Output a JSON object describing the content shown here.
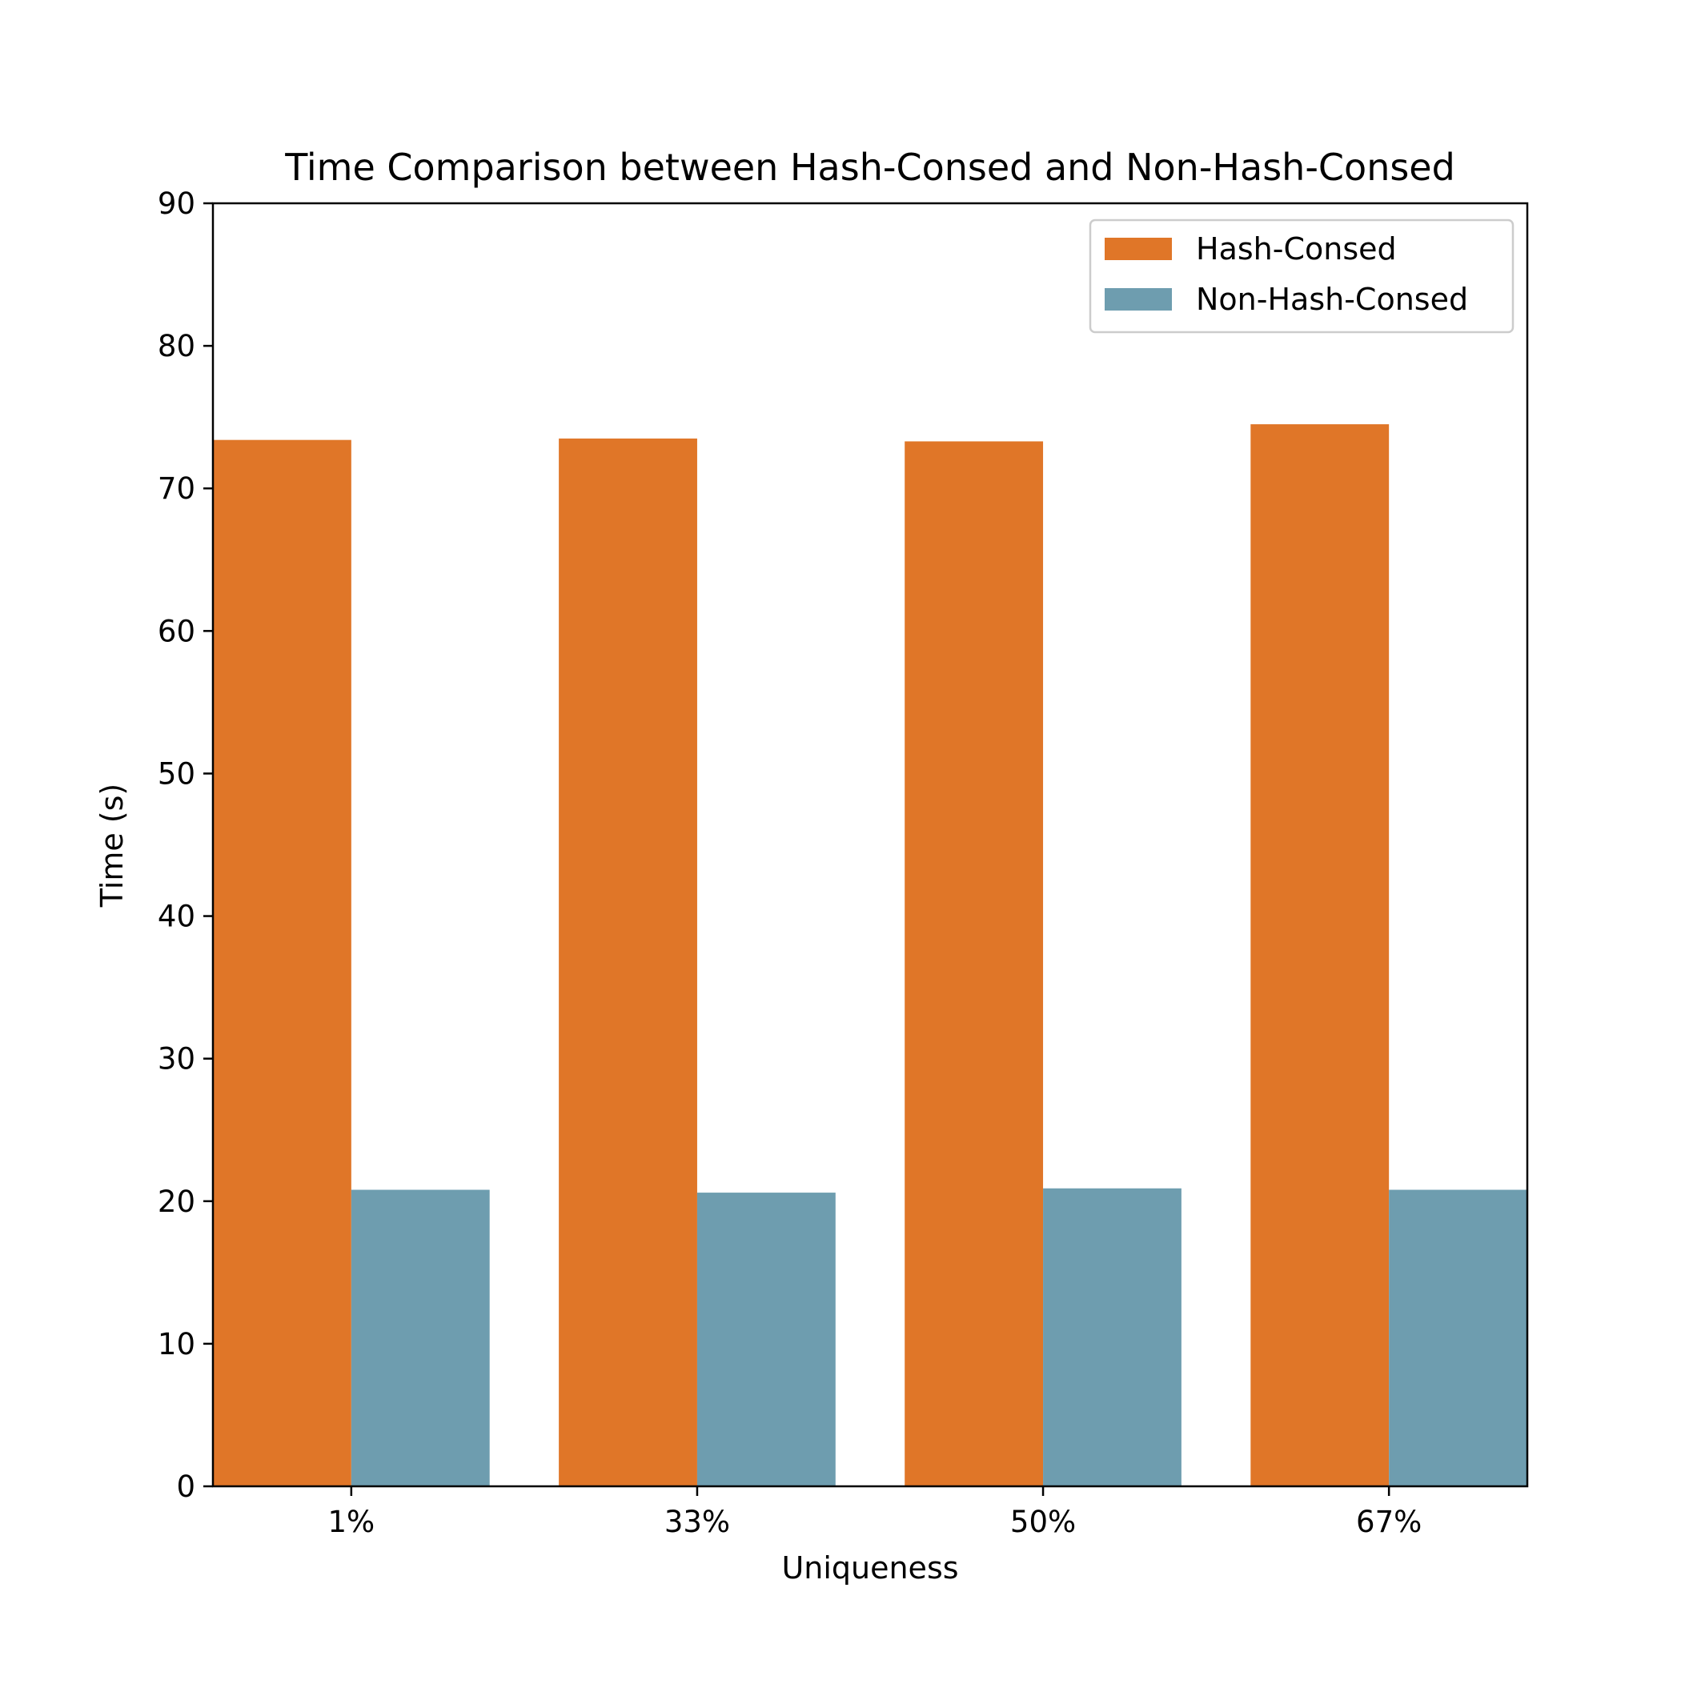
{
  "chart_data": {
    "type": "bar",
    "title": "Time Comparison between Hash-Consed and Non-Hash-Consed",
    "xlabel": "Uniqueness",
    "ylabel": "Time (s)",
    "categories": [
      "1%",
      "33%",
      "50%",
      "67%"
    ],
    "series": [
      {
        "name": "Hash-Consed",
        "values": [
          73.4,
          73.5,
          73.3,
          74.5
        ],
        "color": "#e07628"
      },
      {
        "name": "Non-Hash-Consed",
        "values": [
          20.8,
          20.6,
          20.9,
          20.8
        ],
        "color": "#6e9daf"
      }
    ],
    "ylim": [
      0,
      90
    ],
    "yticks": [
      0,
      10,
      20,
      30,
      40,
      50,
      60,
      70,
      80,
      90
    ],
    "grid": false,
    "legend_position": "top-right"
  }
}
